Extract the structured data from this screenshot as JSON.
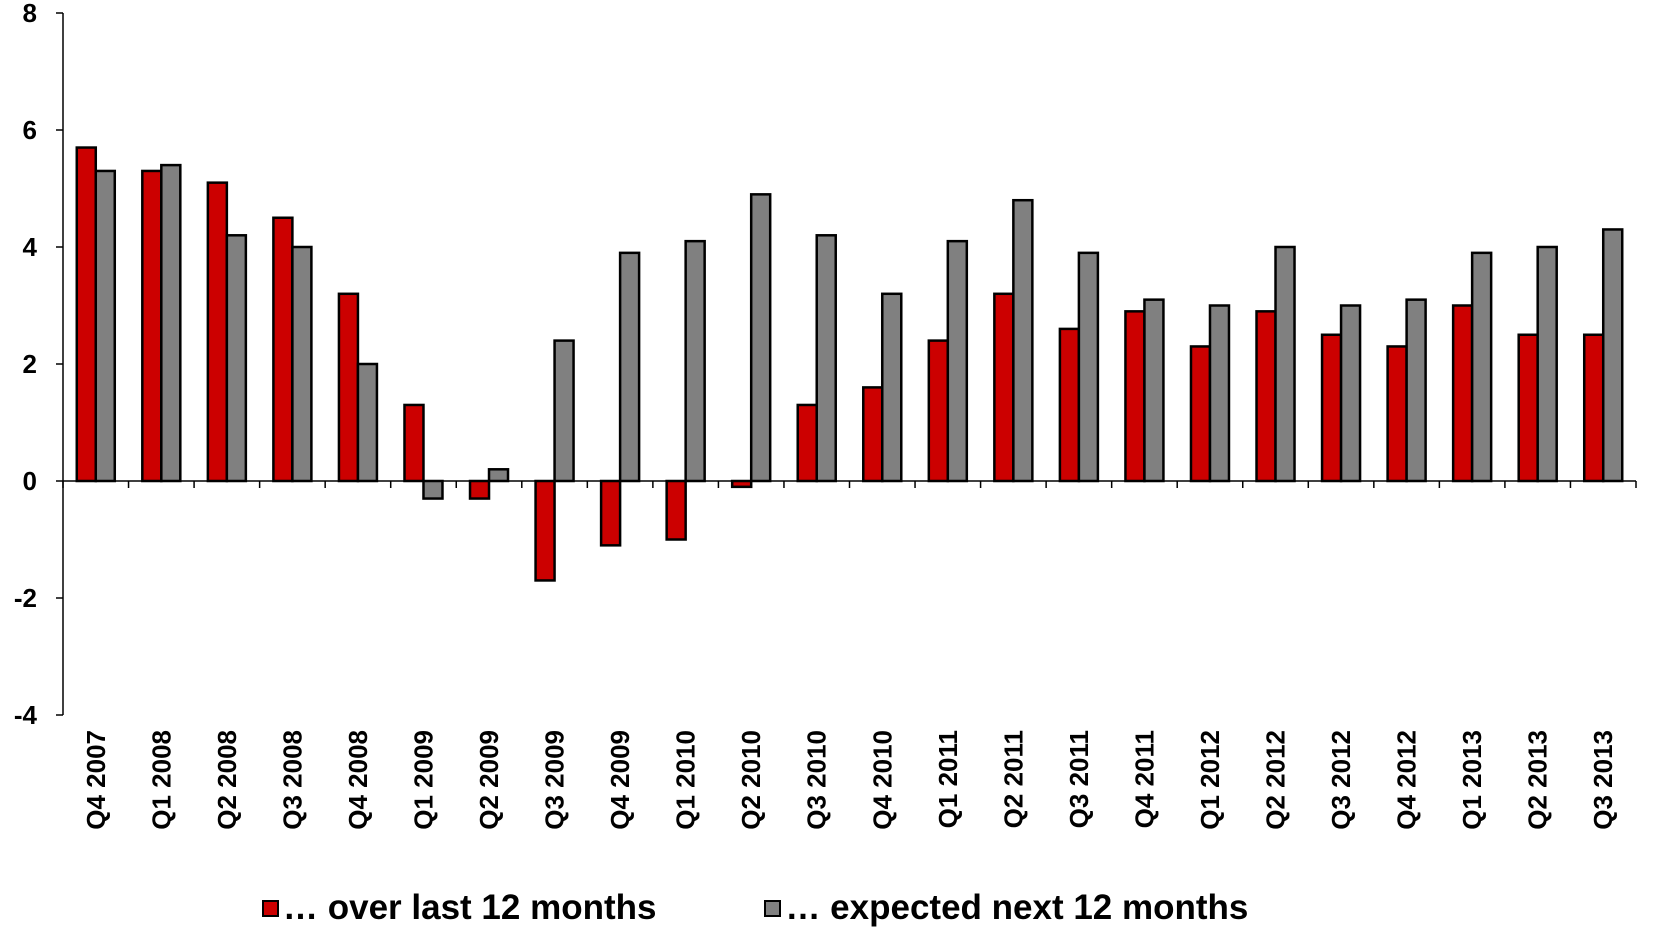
{
  "chart_data": {
    "type": "bar",
    "categories": [
      "Q4 2007",
      "Q1 2008",
      "Q2 2008",
      "Q3 2008",
      "Q4 2008",
      "Q1 2009",
      "Q2 2009",
      "Q3 2009",
      "Q4 2009",
      "Q1 2010",
      "Q2 2010",
      "Q3 2010",
      "Q4 2010",
      "Q1 2011",
      "Q2 2011",
      "Q3 2011",
      "Q4 2011",
      "Q1 2012",
      "Q2 2012",
      "Q3 2012",
      "Q4 2012",
      "Q1 2013",
      "Q2 2013",
      "Q3 2013"
    ],
    "series": [
      {
        "name": "… over last 12 months",
        "color": "#cc0000",
        "values": [
          5.7,
          5.3,
          5.1,
          4.5,
          3.2,
          1.3,
          -0.3,
          -1.7,
          -1.1,
          -1.0,
          -0.1,
          1.3,
          1.6,
          2.4,
          3.2,
          2.6,
          2.9,
          2.3,
          2.9,
          2.5,
          2.3,
          3.0,
          2.5,
          2.5
        ]
      },
      {
        "name": "… expected next 12 months",
        "color": "#808080",
        "values": [
          5.3,
          5.4,
          4.2,
          4.0,
          2.0,
          -0.3,
          0.2,
          2.4,
          3.9,
          4.1,
          4.9,
          4.2,
          3.2,
          4.1,
          4.8,
          3.9,
          3.1,
          3.0,
          4.0,
          3.0,
          3.1,
          3.9,
          4.0,
          4.3
        ]
      }
    ],
    "yticks": [
      "8",
      "6",
      "4",
      "2",
      "0",
      "-2",
      "-4"
    ],
    "ylim": [
      -4,
      8
    ],
    "title": "",
    "xlabel": "",
    "ylabel": "",
    "grid": false,
    "legend_position": "bottom"
  }
}
